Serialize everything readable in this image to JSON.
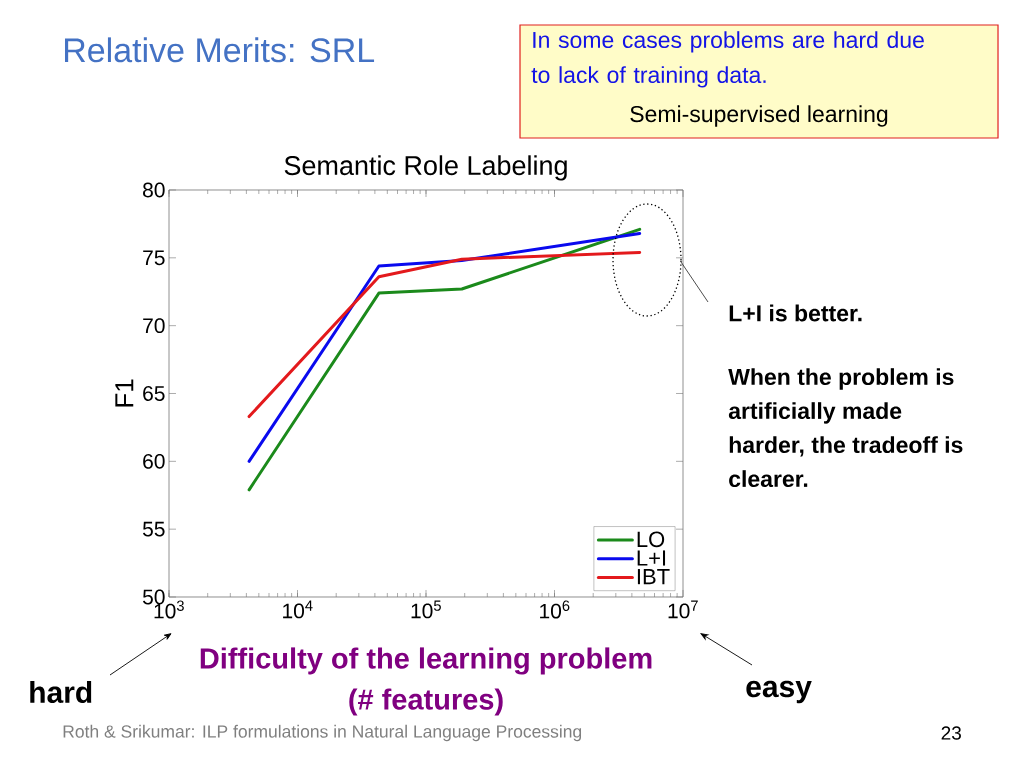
{
  "chart_data": {
    "type": "line",
    "title": "Relative Merits: SRL",
    "subtitle": "Semantic Role Labeling",
    "xlabel": "Difficulty of the learning problem (# features)",
    "ylabel": "F1",
    "x": [
      4200,
      43000,
      190000,
      4600000
    ],
    "series": [
      {
        "name": "LO",
        "color": "#1b8a1b",
        "values": [
          57.9,
          72.4,
          72.7,
          77.1
        ]
      },
      {
        "name": "L+I",
        "color": "#0a0aee",
        "values": [
          60.0,
          74.4,
          74.8,
          76.8
        ]
      },
      {
        "name": "IBT",
        "color": "#e3191c",
        "values": [
          63.3,
          73.6,
          74.9,
          75.4
        ]
      }
    ],
    "xlim": [
      1000,
      10000000
    ],
    "ylim": [
      50,
      80
    ],
    "xticks": [
      {
        "value": 1000,
        "label": "10$^{3}$"
      },
      {
        "value": 10000,
        "label": "10$^{4}$"
      },
      {
        "value": 100000,
        "label": "10$^{5}$"
      },
      {
        "value": 1000000,
        "label": "10$^{6}$"
      },
      {
        "value": 10000000,
        "label": "10$^{7}$"
      }
    ],
    "yticks": [
      50,
      55,
      60,
      65,
      70,
      75,
      80
    ],
    "log": "x",
    "legend": "bottom right",
    "line_style": "solid",
    "annotations": [
      "In some cases problems are hard due to lack of training data.",
      "Semi-supervised learning",
      "L+I is better.",
      "When the problem is artificially made harder, the tradeoff is clearer.",
      "hard",
      "easy",
      "Roth & Srikumar: ILP formulations in Natural Language Processing",
      "23"
    ]
  }
}
